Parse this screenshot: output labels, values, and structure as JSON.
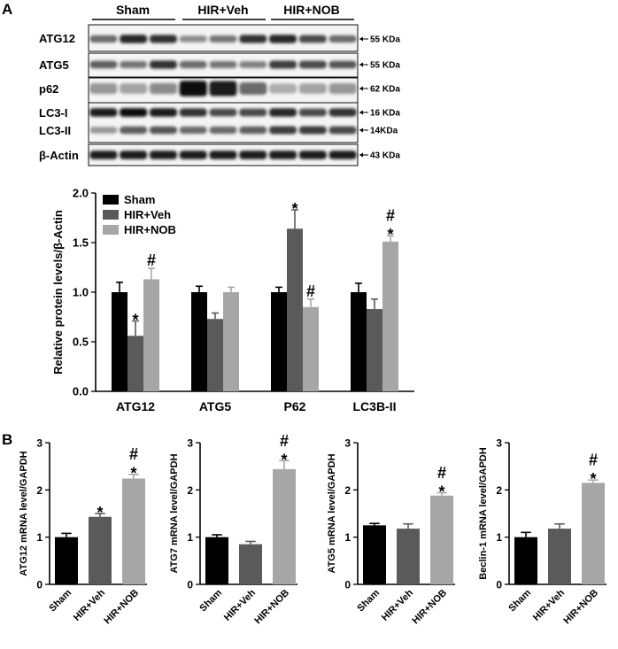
{
  "panel_labels": {
    "a": "A",
    "b": "B"
  },
  "blot": {
    "groups": [
      "Sham",
      "HIR+Veh",
      "HIR+NOB"
    ],
    "bands": [
      {
        "protein": "ATG12",
        "size": "55 KDa",
        "intensity": [
          0.55,
          0.85,
          0.8,
          0.4,
          0.5,
          0.8,
          0.85,
          0.7,
          0.55
        ]
      },
      {
        "protein": "ATG5",
        "size": "55 KDa",
        "intensity": [
          0.6,
          0.5,
          0.8,
          0.55,
          0.5,
          0.45,
          0.75,
          0.7,
          0.65
        ]
      },
      {
        "protein": "p62",
        "size": "62 KDa",
        "intensity": [
          0.35,
          0.3,
          0.4,
          0.95,
          0.9,
          0.55,
          0.25,
          0.3,
          0.35
        ]
      },
      {
        "protein": "LC3-I",
        "size": "16 KDa",
        "intensity": [
          0.9,
          0.95,
          0.9,
          0.8,
          0.7,
          0.7,
          0.85,
          0.7,
          0.8
        ]
      },
      {
        "protein": "LC3-II",
        "size": "14KDa",
        "intensity": [
          0.35,
          0.6,
          0.65,
          0.55,
          0.55,
          0.6,
          0.75,
          0.75,
          0.7
        ]
      },
      {
        "protein": "β-Actin",
        "size": "43 KDa",
        "intensity": [
          0.9,
          0.9,
          0.9,
          0.9,
          0.9,
          0.9,
          0.9,
          0.9,
          0.9
        ]
      }
    ]
  },
  "colors": {
    "Sham": "#000000",
    "HIR+Veh": "#5a5a5a",
    "HIR+NOB": "#a6a6a6"
  },
  "chart_data": [
    {
      "type": "bar",
      "ylabel": "Relative protein levels/β-Actin",
      "ylim": [
        0,
        2.0
      ],
      "yticks": [
        "0.0",
        "0.5",
        "1.0",
        "1.5",
        "2.0"
      ],
      "categories": [
        "ATG12",
        "ATG5",
        "P62",
        "LC3B-II"
      ],
      "series": [
        {
          "name": "Sham",
          "values": [
            1.0,
            1.0,
            1.0,
            1.0
          ],
          "errors": [
            0.1,
            0.06,
            0.05,
            0.09
          ]
        },
        {
          "name": "HIR+Veh",
          "values": [
            0.56,
            0.73,
            1.64,
            0.83
          ],
          "errors": [
            0.15,
            0.06,
            0.19,
            0.1
          ]
        },
        {
          "name": "HIR+NOB",
          "values": [
            1.13,
            1.0,
            0.85,
            1.51
          ],
          "errors": [
            0.11,
            0.05,
            0.08,
            0.06
          ]
        }
      ],
      "annotations": [
        [
          "",
          "",
          ""
        ],
        [
          "",
          "",
          ""
        ],
        [
          "",
          "",
          ""
        ],
        [
          "",
          "",
          ""
        ]
      ],
      "marks": [
        [
          [
            "",
            ""
          ],
          [
            "*",
            ""
          ],
          [
            "#",
            ""
          ]
        ],
        [
          [
            "",
            ""
          ],
          [
            "",
            ""
          ],
          [
            "",
            ""
          ]
        ],
        [
          [
            "",
            ""
          ],
          [
            "*",
            ""
          ],
          [
            "#",
            ""
          ]
        ],
        [
          [
            "",
            ""
          ],
          [
            "",
            ""
          ],
          [
            "*",
            "#"
          ]
        ]
      ],
      "legend_position": "top-left"
    },
    {
      "type": "bar",
      "ylabel": "ATG12 mRNA level/GAPDH",
      "ylim": [
        0,
        3
      ],
      "yticks": [
        "0",
        "1",
        "2",
        "3"
      ],
      "categories": [
        "Sham",
        "HIR+Veh",
        "HIR+NOB"
      ],
      "values": [
        1.0,
        1.43,
        2.24
      ],
      "errors": [
        0.08,
        0.07,
        0.09
      ],
      "marks": [
        [
          "",
          ""
        ],
        [
          "*",
          ""
        ],
        [
          "*",
          "#"
        ]
      ]
    },
    {
      "type": "bar",
      "ylabel": "ATG7 mRNA level/GAPDH",
      "ylim": [
        0,
        3
      ],
      "yticks": [
        "0",
        "1",
        "2",
        "3"
      ],
      "categories": [
        "Sham",
        "HIR+Veh",
        "HIR+NOB"
      ],
      "values": [
        1.0,
        0.85,
        2.44
      ],
      "errors": [
        0.05,
        0.06,
        0.18
      ],
      "marks": [
        [
          "",
          ""
        ],
        [
          "",
          ""
        ],
        [
          "*",
          "#"
        ]
      ]
    },
    {
      "type": "bar",
      "ylabel": "ATG5 mRNA level/GAPDH",
      "ylim": [
        0,
        3
      ],
      "yticks": [
        "0",
        "1",
        "2",
        "3"
      ],
      "categories": [
        "Sham",
        "HIR+Veh",
        "HIR+NOB"
      ],
      "values": [
        1.25,
        1.18,
        1.88
      ],
      "errors": [
        0.04,
        0.1,
        0.06
      ],
      "marks": [
        [
          "",
          ""
        ],
        [
          "",
          ""
        ],
        [
          "*",
          "#"
        ]
      ]
    },
    {
      "type": "bar",
      "ylabel": "Beclin-1 mRNA level/GAPDH",
      "ylim": [
        0,
        3
      ],
      "yticks": [
        "0",
        "1",
        "2",
        "3"
      ],
      "categories": [
        "Sham",
        "HIR+Veh",
        "HIR+NOB"
      ],
      "values": [
        1.0,
        1.18,
        2.15
      ],
      "errors": [
        0.1,
        0.1,
        0.06
      ],
      "marks": [
        [
          "",
          ""
        ],
        [
          "",
          ""
        ],
        [
          "*",
          "#"
        ]
      ]
    }
  ]
}
